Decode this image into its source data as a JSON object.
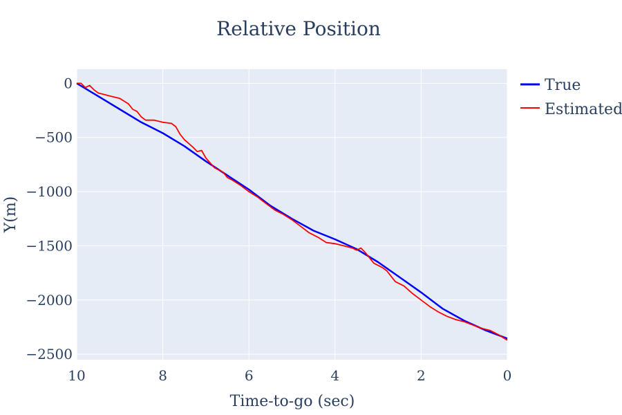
{
  "chart_data": {
    "type": "line",
    "title": "Relative Position",
    "xlabel": "Time-to-go (sec)",
    "ylabel": "Y(m)",
    "xlim": [
      10,
      0
    ],
    "ylim": [
      -2550,
      130
    ],
    "xticks": [
      10,
      8,
      6,
      4,
      2,
      0
    ],
    "yticks": [
      0,
      -500,
      -1000,
      -1500,
      -2000,
      -2500
    ],
    "xtick_labels": [
      "10",
      "8",
      "6",
      "4",
      "2",
      "0"
    ],
    "ytick_labels": [
      "0",
      "−500",
      "−1000",
      "−1500",
      "−2000",
      "−2500"
    ],
    "legend_position": "top-right outside",
    "series": [
      {
        "name": "True",
        "color": "#0000ff",
        "x": [
          10,
          9.5,
          9,
          8.5,
          8,
          7.5,
          7,
          6.5,
          6,
          5.5,
          5,
          4.5,
          4,
          3.5,
          3,
          2.5,
          2,
          1.5,
          1,
          0.5,
          0
        ],
        "y": [
          0,
          -120,
          -240,
          -360,
          -460,
          -580,
          -720,
          -850,
          -980,
          -1130,
          -1250,
          -1360,
          -1440,
          -1530,
          -1650,
          -1790,
          -1930,
          -2080,
          -2190,
          -2280,
          -2355
        ]
      },
      {
        "name": "Estimated",
        "color": "#ff0000",
        "x": [
          10,
          9.9,
          9.8,
          9.7,
          9.6,
          9.5,
          9.4,
          9.2,
          9.0,
          8.8,
          8.7,
          8.6,
          8.5,
          8.4,
          8.2,
          8.0,
          7.8,
          7.7,
          7.6,
          7.5,
          7.3,
          7.2,
          7.1,
          7.0,
          6.8,
          6.6,
          6.5,
          6.4,
          6.2,
          6.0,
          5.8,
          5.6,
          5.4,
          5.2,
          5.0,
          4.8,
          4.6,
          4.4,
          4.2,
          4.0,
          3.8,
          3.6,
          3.5,
          3.4,
          3.3,
          3.2,
          3.1,
          3.0,
          2.9,
          2.8,
          2.7,
          2.6,
          2.5,
          2.4,
          2.2,
          2.0,
          1.8,
          1.6,
          1.4,
          1.2,
          1.0,
          0.8,
          0.6,
          0.4,
          0.2,
          0
        ],
        "y": [
          0,
          0,
          -40,
          -20,
          -60,
          -90,
          -100,
          -120,
          -140,
          -190,
          -240,
          -260,
          -310,
          -340,
          -340,
          -360,
          -370,
          -400,
          -470,
          -520,
          -590,
          -630,
          -620,
          -690,
          -780,
          -820,
          -870,
          -890,
          -940,
          -1000,
          -1050,
          -1110,
          -1170,
          -1210,
          -1260,
          -1320,
          -1380,
          -1420,
          -1470,
          -1480,
          -1500,
          -1520,
          -1540,
          -1520,
          -1560,
          -1610,
          -1660,
          -1680,
          -1700,
          -1730,
          -1780,
          -1830,
          -1850,
          -1870,
          -1940,
          -2000,
          -2060,
          -2110,
          -2150,
          -2180,
          -2200,
          -2230,
          -2260,
          -2280,
          -2320,
          -2370
        ]
      }
    ]
  }
}
